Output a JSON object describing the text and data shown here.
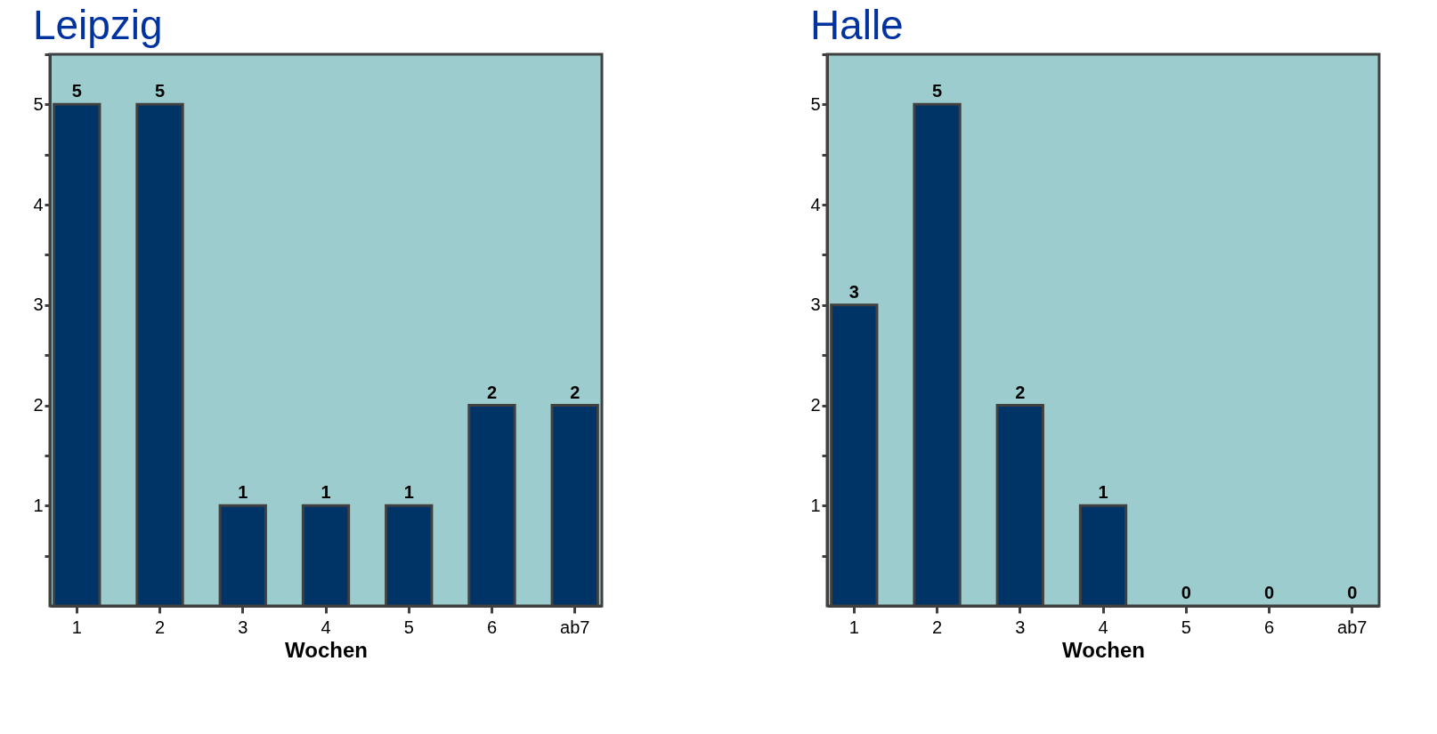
{
  "chart_data": [
    {
      "type": "bar",
      "title": "Leipzig",
      "xlabel": "Wochen",
      "categories": [
        "1",
        "2",
        "3",
        "4",
        "5",
        "6",
        "ab7"
      ],
      "values": [
        5,
        5,
        1,
        1,
        1,
        2,
        2
      ],
      "color": "#003366",
      "ylim": [
        0,
        5.5
      ],
      "yticks": [
        {
          "value": 0.5,
          "label": null
        },
        1,
        {
          "value": 1.5,
          "label": null
        },
        2,
        {
          "value": 2.5,
          "label": null
        },
        3,
        {
          "value": 3.5,
          "label": null
        },
        4,
        {
          "value": 4.5,
          "label": null
        },
        5,
        {
          "value": 5.5,
          "label": null
        }
      ],
      "data_labels": true,
      "grid": false
    },
    {
      "type": "bar",
      "title": "Halle",
      "xlabel": "Wochen",
      "categories": [
        "1",
        "2",
        "3",
        "4",
        "5",
        "6",
        "ab7"
      ],
      "values": [
        3,
        5,
        2,
        1,
        0,
        0,
        0
      ],
      "color": "#003366",
      "ylim": [
        0,
        5.5
      ],
      "yticks": [
        {
          "value": 0.5,
          "label": null
        },
        1,
        {
          "value": 1.5,
          "label": null
        },
        2,
        {
          "value": 2.5,
          "label": null
        },
        3,
        {
          "value": 3.5,
          "label": null
        },
        4,
        {
          "value": 4.5,
          "label": null
        },
        5,
        {
          "value": 5.5,
          "label": null
        }
      ],
      "data_labels": true,
      "grid": false
    }
  ]
}
